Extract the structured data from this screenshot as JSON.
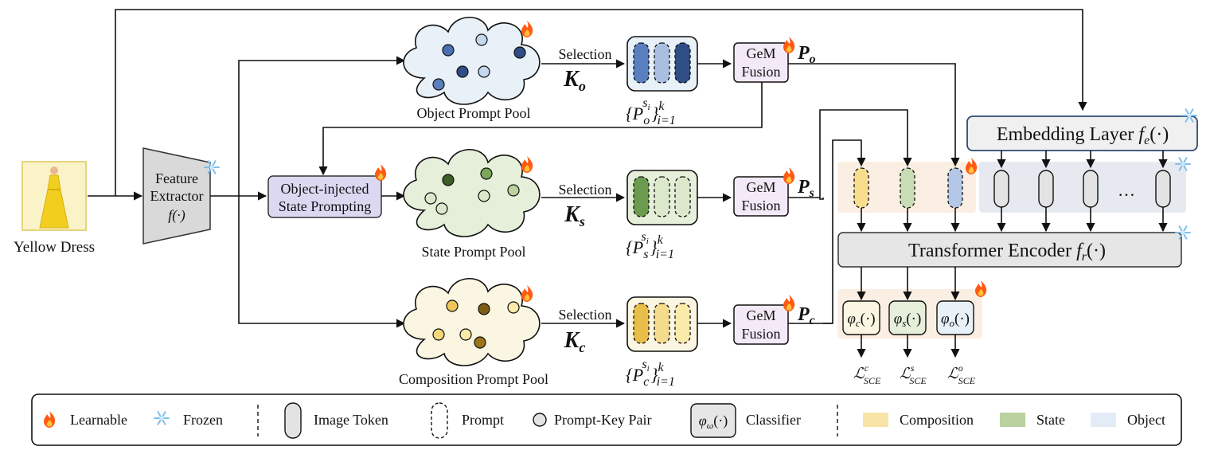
{
  "input": {
    "label": "Yellow Dress"
  },
  "feature_extractor": {
    "line1": "Feature",
    "line2": "Extractor",
    "symbol": "f(·)"
  },
  "pools": {
    "object": {
      "label": "Object Prompt Pool",
      "selection": "Selection",
      "key_main": "K",
      "key_sub": "o",
      "set_sub": "o"
    },
    "state": {
      "label": "State Prompt Pool",
      "selection": "Selection",
      "key_main": "K",
      "key_sub": "s",
      "set_sub": "s"
    },
    "composition": {
      "label": "Composition Prompt Pool",
      "selection": "Selection",
      "key_main": "K",
      "key_sub": "c",
      "set_sub": "c"
    }
  },
  "prompt_set": {
    "open": "{P",
    "sup": "s",
    "supsub": "i",
    "close": "}",
    "upper": "k",
    "lower": "i=1"
  },
  "gem": {
    "line1": "GeM",
    "line2": "Fusion"
  },
  "fusion_outputs": {
    "main": "P",
    "object": "o",
    "state": "s",
    "composition": "c"
  },
  "osp": {
    "line1": "Object-injected",
    "line2": "State Prompting"
  },
  "embedding": {
    "text": "Embedding Layer",
    "func": "f",
    "sub": "e",
    "args": "(·)"
  },
  "transformer": {
    "text": "Transformer Encoder",
    "func": "f",
    "sub": "r",
    "args": "(·)"
  },
  "tokens": {
    "ellipsis": "…"
  },
  "classifiers": {
    "phi": "φ",
    "c": "c",
    "s": "s",
    "o": "o",
    "args": "(·)"
  },
  "losses": {
    "L": "ℒ",
    "sub": "SCE",
    "c": "c",
    "s": "s",
    "o": "o"
  },
  "legend": {
    "learnable": "Learnable",
    "frozen": "Frozen",
    "image_token": "Image Token",
    "prompt": "Prompt",
    "prompt_key_pair": "Prompt-Key Pair",
    "classifier_symbol_phi": "φ",
    "classifier_symbol_sub": "ω",
    "classifier_symbol_args": "(·)",
    "classifier": "Classifier",
    "composition": "Composition",
    "state": "State",
    "object": "Object"
  },
  "colors": {
    "object_bg": "#e8f0f8",
    "state_bg": "#e6efda",
    "composition_bg": "#fbf6e1",
    "object_prompt": "#5a7fbe",
    "state_prompt": "#6c9a4f",
    "composition_prompt": "#e8be4a",
    "osp_box": "#dcd8f2",
    "gem_box": "#f4eaf7",
    "token_grey": "#e3e3e3",
    "fire": "#ff6a1a",
    "snow": "#8fc7ee"
  }
}
